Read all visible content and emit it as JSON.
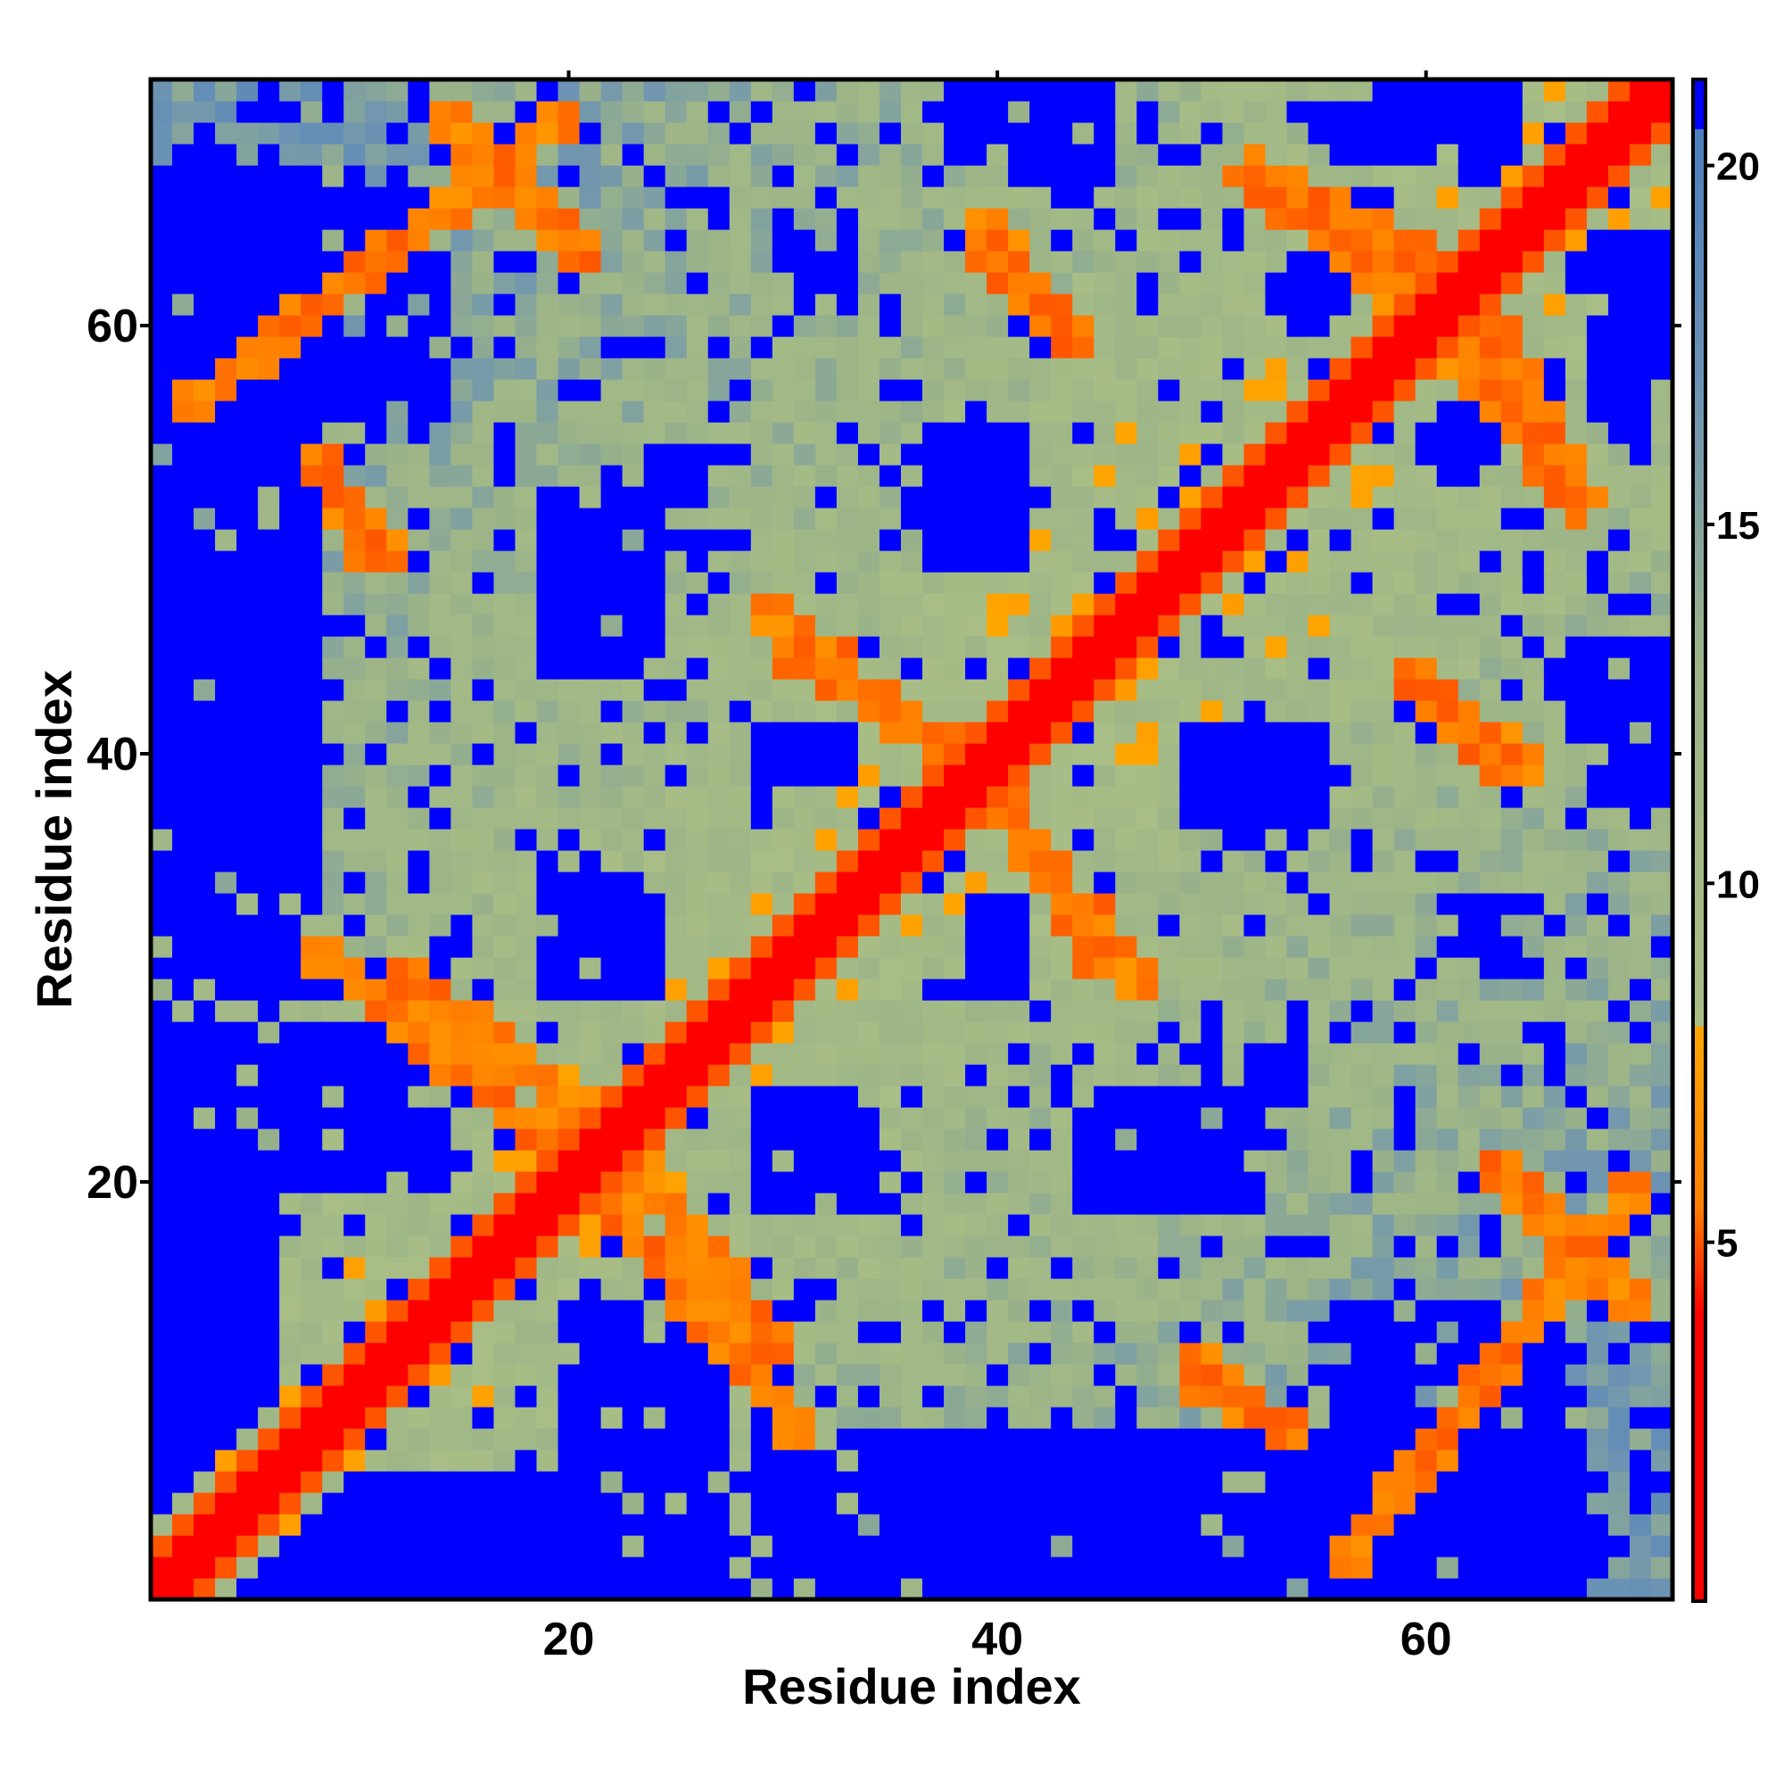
{
  "chart_data": {
    "type": "heatmap",
    "title": "",
    "xlabel": "Residue index",
    "ylabel": "Residue index",
    "n_residues": 71,
    "xlim": [
      1,
      71
    ],
    "ylim": [
      1,
      71
    ],
    "x_ticks": [
      20,
      40,
      60
    ],
    "y_ticks": [
      20,
      40,
      60
    ],
    "colorbar": {
      "ticks": [
        5,
        10,
        15,
        20
      ],
      "range": [
        0,
        21.2
      ],
      "stops": [
        {
          "value": 0,
          "color": "#FF0000"
        },
        {
          "value": 4,
          "color": "#FF0000"
        },
        {
          "value": 5.5,
          "color": "#FF7F00"
        },
        {
          "value": 8,
          "color": "#FFA500"
        },
        {
          "value": 8.01,
          "color": "#A9BE86"
        },
        {
          "value": 13,
          "color": "#9CB487"
        },
        {
          "value": 17,
          "color": "#6B92B4"
        },
        {
          "value": 20.5,
          "color": "#4D7FBE"
        },
        {
          "value": 20.51,
          "color": "#0000FF"
        },
        {
          "value": 21.2,
          "color": "#0000FF"
        }
      ]
    },
    "contact_segments": [
      {
        "x0": 2,
        "y0": 56,
        "x1": 20,
        "y1": 70,
        "value": 6
      },
      {
        "x0": 8,
        "y0": 54,
        "x1": 12,
        "y1": 49,
        "value": 6
      },
      {
        "x0": 8,
        "y0": 31,
        "x1": 19,
        "y1": 22,
        "value": 6
      },
      {
        "x0": 23,
        "y0": 21,
        "x1": 30,
        "y1": 12,
        "value": 6
      },
      {
        "x0": 30,
        "y0": 45,
        "x1": 40,
        "y1": 39,
        "value": 6
      },
      {
        "x0": 39,
        "y0": 64,
        "x1": 44,
        "y1": 59,
        "value": 6
      },
      {
        "x0": 40,
        "y0": 38,
        "x1": 47,
        "y1": 29,
        "value": 6
      },
      {
        "x0": 52,
        "y0": 67,
        "x1": 64,
        "y1": 57,
        "value": 6
      },
      {
        "x0": 59,
        "y0": 44,
        "x1": 65,
        "y1": 39,
        "value": 6
      },
      {
        "x0": 63,
        "y0": 21,
        "x1": 70,
        "y1": 14,
        "value": 6
      },
      {
        "x0": 63,
        "y0": 60,
        "x1": 68,
        "y1": 51,
        "value": 6
      },
      {
        "x0": 49,
        "y0": 11,
        "x1": 54,
        "y1": 8,
        "value": 6
      }
    ],
    "far_regions": [
      {
        "x0": 1,
        "y0": 38,
        "x1": 8,
        "y1": 67,
        "value": 21
      },
      {
        "x0": 1,
        "y0": 1,
        "x1": 6,
        "y1": 20,
        "value": 21
      },
      {
        "x0": 7,
        "y0": 1,
        "x1": 20,
        "y1": 5,
        "value": 21
      },
      {
        "x0": 20,
        "y0": 1,
        "x1": 27,
        "y1": 14,
        "value": 21
      },
      {
        "x0": 29,
        "y0": 1,
        "x1": 50,
        "y1": 8,
        "value": 21
      },
      {
        "x0": 56,
        "y0": 1,
        "x1": 66,
        "y1": 14,
        "value": 21
      },
      {
        "x0": 24,
        "y0": 49,
        "x1": 26,
        "y1": 54,
        "value": 21
      },
      {
        "x0": 20,
        "y0": 29,
        "x1": 24,
        "y1": 34,
        "value": 21
      },
      {
        "x0": 29,
        "y0": 19,
        "x1": 33,
        "y1": 24,
        "value": 21
      },
      {
        "x0": 37,
        "y0": 49,
        "x1": 41,
        "y1": 55,
        "value": 21
      },
      {
        "x0": 39,
        "y0": 29,
        "x1": 41,
        "y1": 33,
        "value": 21
      },
      {
        "x0": 44,
        "y0": 19,
        "x1": 52,
        "y1": 24,
        "value": 21
      },
      {
        "x0": 51,
        "y0": 36,
        "x1": 55,
        "y1": 41,
        "value": 21
      },
      {
        "x0": 60,
        "y0": 53,
        "x1": 63,
        "y1": 56,
        "value": 21
      },
      {
        "x0": 62,
        "y0": 30,
        "x1": 64,
        "y1": 33,
        "value": 21
      },
      {
        "x0": 41,
        "y0": 67,
        "x1": 45,
        "y1": 71,
        "value": 21
      },
      {
        "x0": 59,
        "y0": 68,
        "x1": 62,
        "y1": 71,
        "value": 21
      },
      {
        "x0": 68,
        "y0": 55,
        "x1": 71,
        "y1": 64,
        "value": 21
      },
      {
        "x0": 68,
        "y0": 38,
        "x1": 71,
        "y1": 42,
        "value": 21
      }
    ]
  }
}
